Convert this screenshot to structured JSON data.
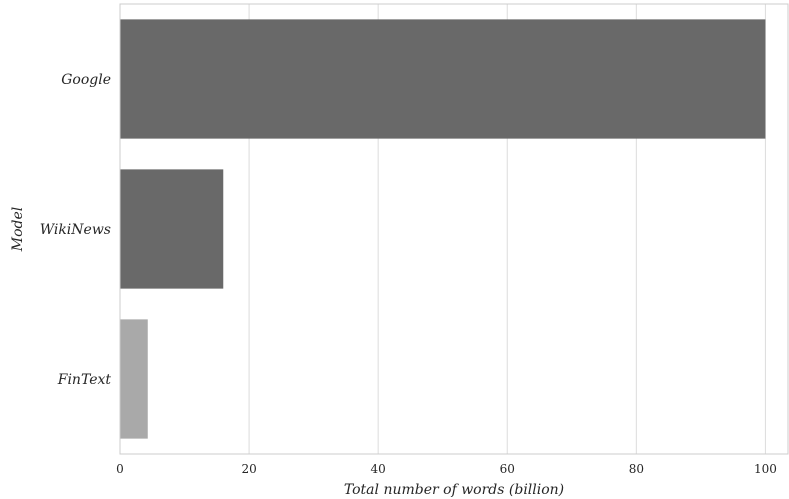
{
  "chart_data": {
    "type": "bar",
    "orientation": "horizontal",
    "categories": [
      "Google",
      "WikiNews",
      "FinText"
    ],
    "values": [
      100,
      16,
      4.3
    ],
    "bar_colors": [
      "#696969",
      "#696969",
      "#a9a9a9"
    ],
    "xlabel": "Total number of words (billion)",
    "ylabel": "Model",
    "xlim": [
      0,
      103.5
    ],
    "xticks": [
      "0",
      "20",
      "40",
      "60",
      "80",
      "100"
    ],
    "grid": "vertical",
    "legend": "none"
  },
  "colors": {
    "grid": "#dcdcdc",
    "spine": "#cccccc",
    "text": "#262626"
  }
}
